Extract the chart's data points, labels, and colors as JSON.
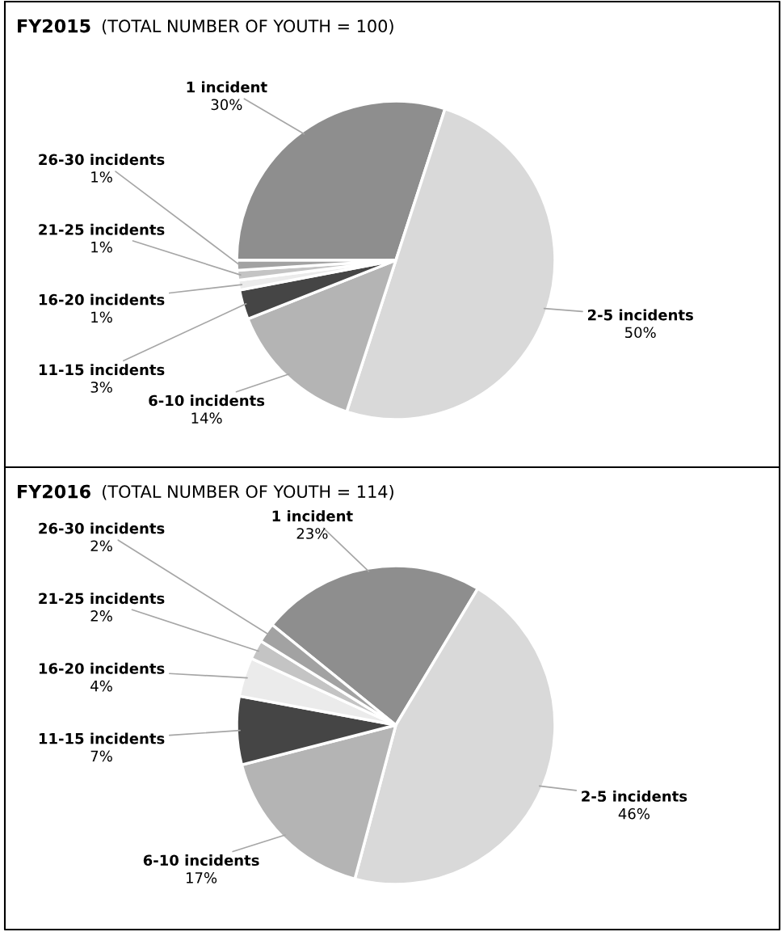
{
  "chart_data": [
    {
      "type": "pie",
      "title": "FY2015",
      "subtitle": "(TOTAL NUMBER OF YOUTH = 100)",
      "categories": [
        "1 incident",
        "2-5 incidents",
        "6-10 incidents",
        "11-15 incidents",
        "16-20 incidents",
        "21-25 incidents",
        "26-30 incidents"
      ],
      "values": [
        30,
        50,
        14,
        3,
        1,
        1,
        1
      ],
      "value_labels": [
        "30%",
        "50%",
        "14%",
        "3%",
        "1%",
        "1%",
        "1%"
      ],
      "colors": [
        "#8e8e8e",
        "#d9d9d9",
        "#b4b4b4",
        "#454545",
        "#ebebeb",
        "#c4c4c4",
        "#a2a2a2"
      ]
    },
    {
      "type": "pie",
      "title": "FY2016",
      "subtitle": "(TOTAL NUMBER OF YOUTH = 114)",
      "categories": [
        "1 incident",
        "2-5 incidents",
        "6-10 incidents",
        "11-15 incidents",
        "16-20 incidents",
        "21-25 incidents",
        "26-30 incidents"
      ],
      "values": [
        23,
        46,
        17,
        7,
        4,
        2,
        2
      ],
      "value_labels": [
        "23%",
        "46%",
        "17%",
        "7%",
        "4%",
        "2%",
        "2%"
      ],
      "colors": [
        "#8e8e8e",
        "#d9d9d9",
        "#b4b4b4",
        "#454545",
        "#ebebeb",
        "#c4c4c4",
        "#a2a2a2"
      ]
    }
  ]
}
